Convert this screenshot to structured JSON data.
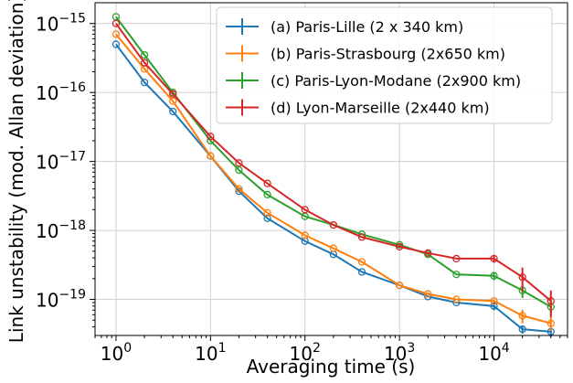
{
  "chart_data": {
    "type": "line",
    "title": "",
    "xlabel": "Averaging time (s)",
    "ylabel": "Link unstability (mod. Allan deviation)",
    "x_scale": "log",
    "y_scale": "log",
    "xlim": [
      0.6,
      60000
    ],
    "ylim": [
      3e-20,
      2e-15
    ],
    "grid": true,
    "legend_position": "top-right",
    "x_ticks": [
      {
        "value": 1,
        "mantissa": "10",
        "exp": "0"
      },
      {
        "value": 10,
        "mantissa": "10",
        "exp": "1"
      },
      {
        "value": 100,
        "mantissa": "10",
        "exp": "2"
      },
      {
        "value": 1000,
        "mantissa": "10",
        "exp": "3"
      },
      {
        "value": 10000,
        "mantissa": "10",
        "exp": "4"
      }
    ],
    "y_ticks": [
      {
        "value": 1e-19,
        "mantissa": "10",
        "exp": "−19"
      },
      {
        "value": 1e-18,
        "mantissa": "10",
        "exp": "−18"
      },
      {
        "value": 1e-17,
        "mantissa": "10",
        "exp": "−17"
      },
      {
        "value": 1e-16,
        "mantissa": "10",
        "exp": "−16"
      },
      {
        "value": 1e-15,
        "mantissa": "10",
        "exp": "−15"
      }
    ],
    "series": [
      {
        "name": "(a) Paris-Lille (2 x 340 km)",
        "color": "#1f77b4",
        "x": [
          1,
          2,
          4,
          10,
          20,
          40,
          100,
          200,
          400,
          1000,
          2000,
          4000,
          10000,
          20000,
          40000
        ],
        "y": [
          5e-16,
          1.4e-16,
          5.3e-17,
          1.2e-17,
          3.7e-18,
          1.5e-18,
          7e-19,
          4.5e-19,
          2.5e-19,
          1.6e-19,
          1.1e-19,
          9e-20,
          8e-20,
          3.7e-20,
          3.4e-20
        ],
        "err": [
          0,
          0,
          0,
          0,
          0,
          0,
          0,
          0,
          0,
          0,
          0,
          1e-21,
          1e-20,
          5e-21,
          5e-21
        ]
      },
      {
        "name": "(b) Paris-Strasbourg (2x650 km)",
        "color": "#ff7f0e",
        "x": [
          1,
          2,
          4,
          10,
          20,
          40,
          100,
          200,
          400,
          1000,
          2000,
          4000,
          10000,
          20000,
          40000
        ],
        "y": [
          7e-16,
          2.2e-16,
          7.5e-17,
          1.2e-17,
          4e-18,
          1.8e-18,
          8.5e-19,
          5.5e-19,
          3.5e-19,
          1.6e-19,
          1.2e-19,
          1e-19,
          9.5e-20,
          5.8e-20,
          4.5e-20
        ],
        "err": [
          0,
          0,
          0,
          0,
          0,
          0,
          0,
          0,
          0,
          0,
          0,
          0,
          5e-21,
          1.3e-20,
          1e-20
        ]
      },
      {
        "name": "(c) Paris-Lyon-Modane (2x900 km)",
        "color": "#2ca02c",
        "x": [
          1,
          2,
          4,
          10,
          20,
          40,
          100,
          200,
          400,
          1000,
          2000,
          4000,
          10000,
          20000,
          40000
        ],
        "y": [
          1.25e-15,
          3.5e-16,
          1e-16,
          2e-17,
          7.5e-18,
          3.3e-18,
          1.6e-18,
          1.2e-18,
          8.8e-19,
          6.2e-19,
          4.5e-19,
          2.3e-19,
          2.2e-19,
          1.35e-19,
          7.8e-20
        ],
        "err": [
          0,
          0,
          0,
          0,
          0,
          0,
          0,
          0,
          0,
          0,
          0,
          2e-21,
          3e-20,
          3e-20,
          2e-20
        ]
      },
      {
        "name": "(d) Lyon-Marseille (2x440 km)",
        "color": "#d62728",
        "x": [
          1,
          2,
          4,
          10,
          20,
          40,
          100,
          200,
          400,
          1000,
          2000,
          4000,
          10000,
          20000,
          40000
        ],
        "y": [
          1e-15,
          2.7e-16,
          9.5e-17,
          2.3e-17,
          9.5e-18,
          4.8e-18,
          2e-18,
          1.2e-18,
          8e-19,
          5.8e-19,
          4.7e-19,
          3.9e-19,
          3.9e-19,
          2.1e-19,
          9.5e-20
        ],
        "err": [
          0,
          0,
          0,
          0,
          0,
          0,
          0,
          0,
          0,
          0,
          4e-21,
          4e-21,
          5e-20,
          8e-20,
          4e-20
        ]
      }
    ]
  }
}
